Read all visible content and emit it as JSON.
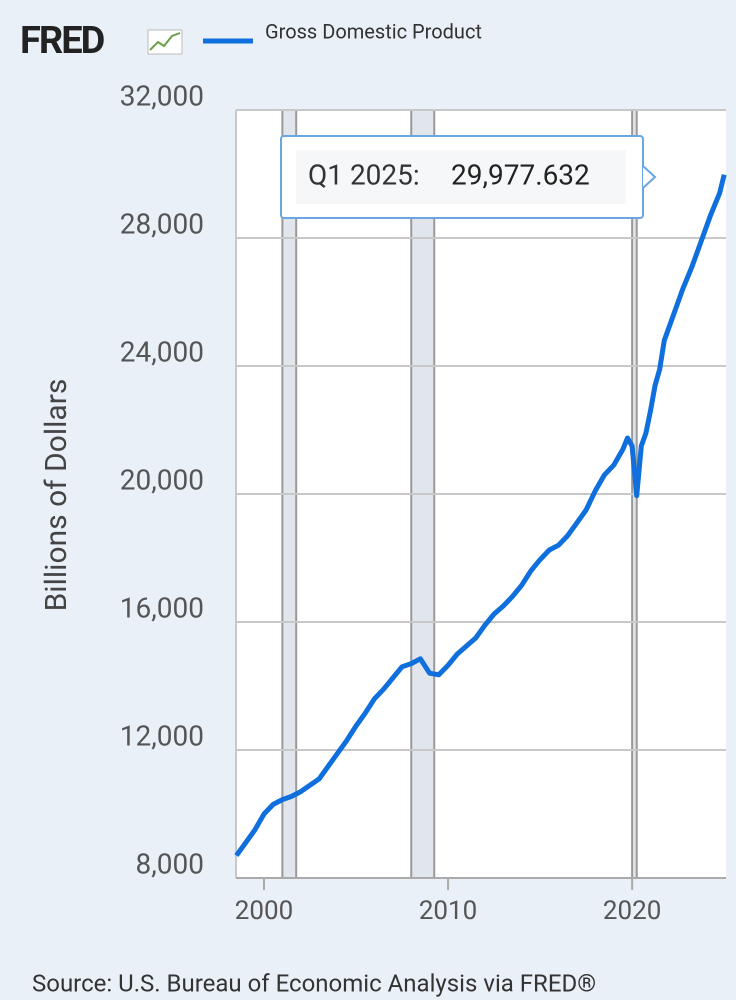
{
  "chart_data": {
    "type": "line",
    "logo": "FRED",
    "y_label": "Billions of Dollars",
    "source": "Source: U.S. Bureau of Economic Analysis via FRED®",
    "x": [
      "Q3 1998",
      "Q1 1999",
      "Q3 1999",
      "Q1 2000",
      "Q3 2000",
      "Q1 2001",
      "Q3 2001",
      "Q1 2002",
      "Q3 2002",
      "Q1 2003",
      "Q3 2003",
      "Q1 2004",
      "Q3 2004",
      "Q1 2005",
      "Q3 2005",
      "Q1 2006",
      "Q3 2006",
      "Q1 2007",
      "Q3 2007",
      "Q1 2008",
      "Q3 2008",
      "Q1 2009",
      "Q3 2009",
      "Q1 2010",
      "Q3 2010",
      "Q1 2011",
      "Q3 2011",
      "Q1 2012",
      "Q3 2012",
      "Q1 2013",
      "Q3 2013",
      "Q1 2014",
      "Q3 2014",
      "Q1 2015",
      "Q3 2015",
      "Q1 2016",
      "Q3 2016",
      "Q1 2017",
      "Q3 2017",
      "Q1 2018",
      "Q3 2018",
      "Q1 2019",
      "Q3 2019",
      "Q4 2019",
      "Q1 2020",
      "Q2 2020",
      "Q3 2020",
      "Q4 2020",
      "Q1 2021",
      "Q2 2021",
      "Q3 2021",
      "Q4 2021",
      "Q2 2022",
      "Q4 2022",
      "Q2 2023",
      "Q4 2023",
      "Q2 2024",
      "Q4 2024",
      "Q1 2025"
    ],
    "series": [
      {
        "name": "Gross Domestic Product",
        "color": "#0f6fdc",
        "values": [
          8700,
          9100,
          9500,
          10000,
          10300,
          10450,
          10550,
          10700,
          10900,
          11100,
          11500,
          11900,
          12300,
          12750,
          13150,
          13600,
          13900,
          14250,
          14600,
          14700,
          14850,
          14400,
          14350,
          14650,
          15000,
          15250,
          15500,
          15900,
          16250,
          16500,
          16800,
          17150,
          17600,
          17950,
          18250,
          18400,
          18700,
          19100,
          19500,
          20100,
          20600,
          20900,
          21400,
          21750,
          21500,
          19950,
          21500,
          21900,
          22600,
          23400,
          23900,
          24800,
          25600,
          26400,
          27100,
          27900,
          28700,
          29400,
          29977.632
        ]
      }
    ],
    "recessions": [
      {
        "start": "Q1 2001",
        "end": "Q4 2001"
      },
      {
        "start": "Q1 2008",
        "end": "Q2 2009"
      },
      {
        "start": "Q1 2020",
        "end": "Q2 2020"
      }
    ],
    "tooltip": {
      "x": "Q1 2025:",
      "value": "29,977.632"
    },
    "xlim": [
      1998.48,
      2025.1
    ],
    "xticks": [
      2000,
      2010,
      2020
    ],
    "ylim": [
      8000,
      32000
    ],
    "yticks": [
      {
        "value": 8000,
        "label": "8,000"
      },
      {
        "value": 12000,
        "label": "12,000"
      },
      {
        "value": 16000,
        "label": "16,000"
      },
      {
        "value": 20000,
        "label": "20,000"
      },
      {
        "value": 24000,
        "label": "24,000"
      },
      {
        "value": 28000,
        "label": "28,000"
      },
      {
        "value": 32000,
        "label": "32,000"
      }
    ],
    "grid": true
  }
}
